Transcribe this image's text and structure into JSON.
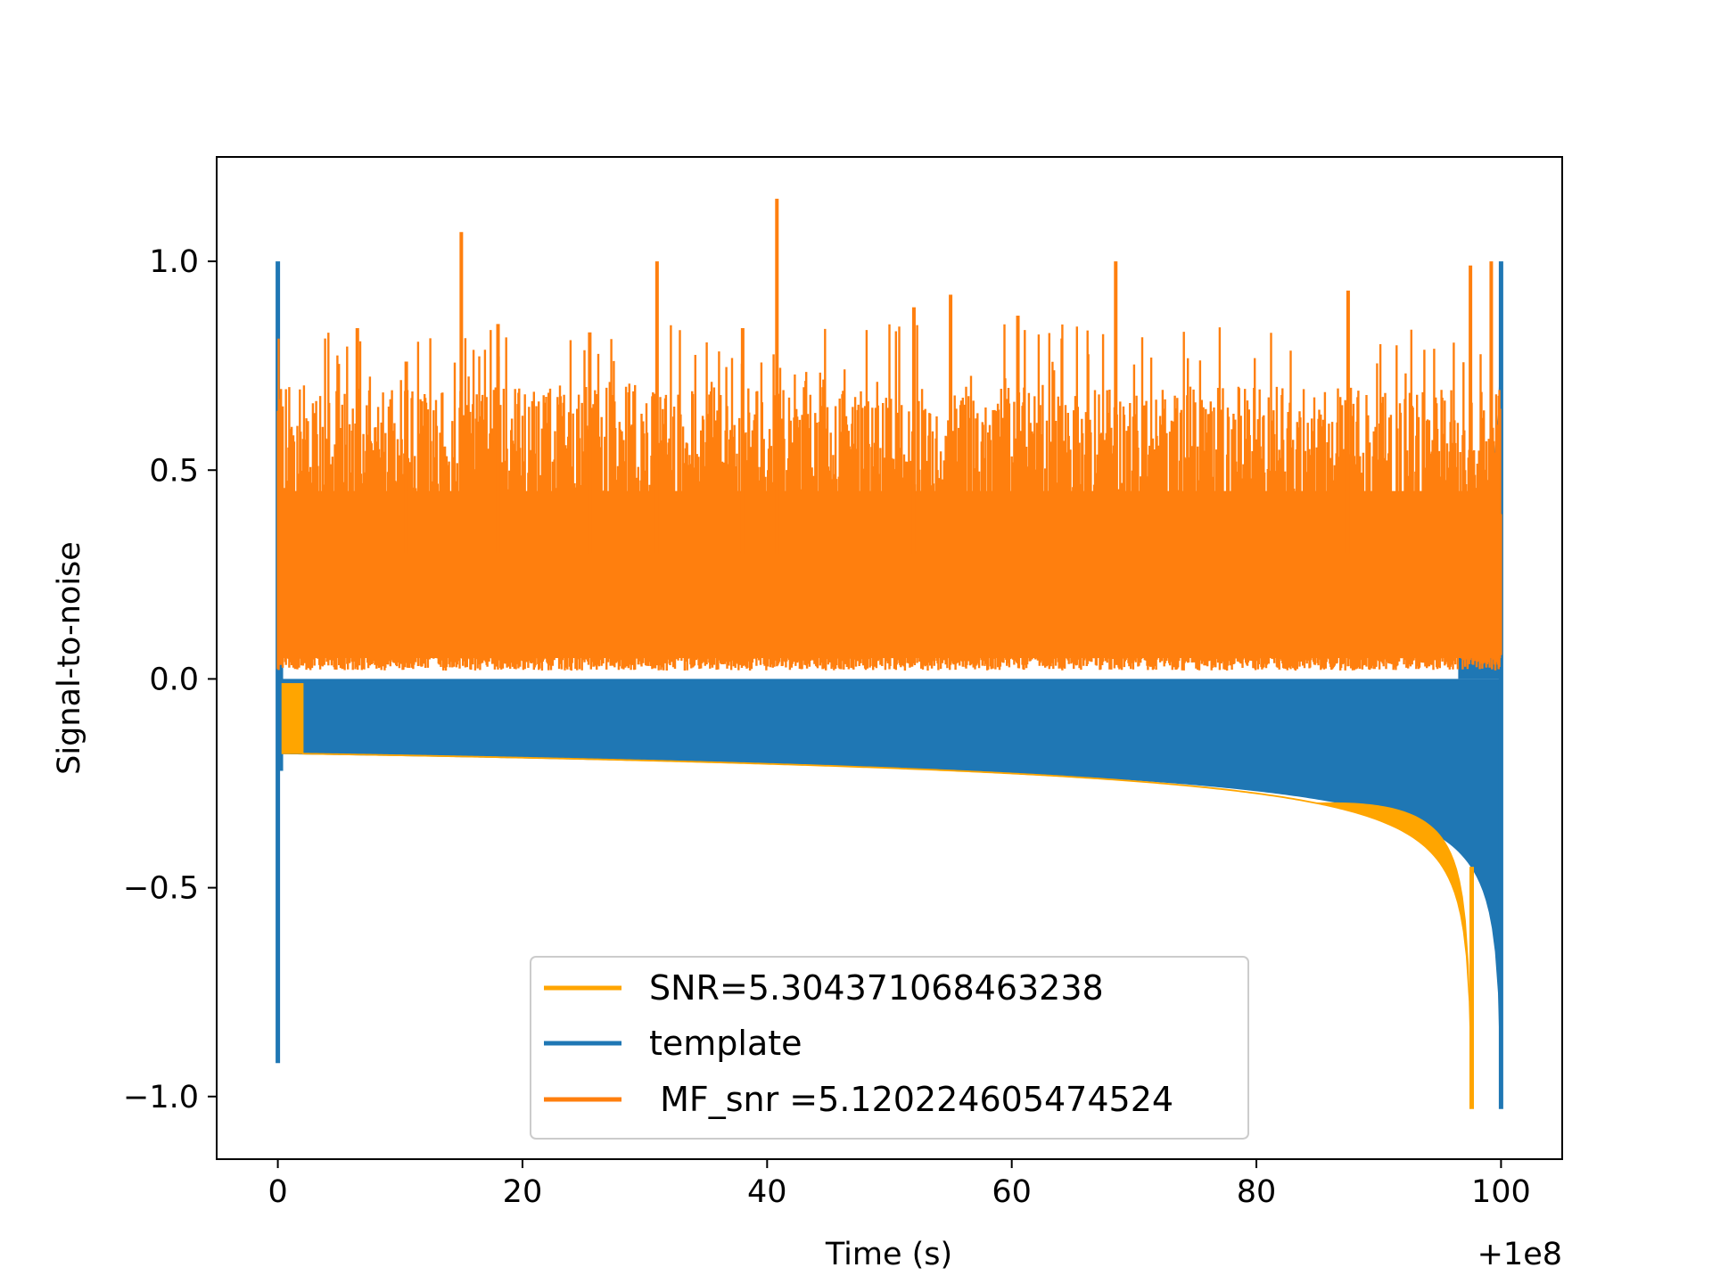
{
  "chart_data": {
    "type": "line",
    "title": "",
    "xlabel": "Time (s)",
    "ylabel": "Signal-to-noise",
    "x_offset_label": "+1e8",
    "xlim": [
      -5,
      105
    ],
    "ylim": [
      -1.15,
      1.25
    ],
    "x_ticks": [
      0,
      20,
      40,
      60,
      80,
      100
    ],
    "x_tick_labels": [
      "0",
      "20",
      "40",
      "60",
      "80",
      "100"
    ],
    "y_ticks": [
      -1.0,
      -0.5,
      0.0,
      0.5,
      1.0
    ],
    "y_tick_labels": [
      "−1.0",
      "−0.5",
      "0.0",
      "0.5",
      "1.0"
    ],
    "grid": false,
    "legend_position": "lower-center",
    "series": [
      {
        "name": "SNR=5.304371068463238",
        "color": "#ffa500",
        "kind": "chirp-band",
        "start_x": 0.0,
        "end_x": 97.6,
        "baseline_start": -0.18,
        "min_value": -1.03
      },
      {
        "name": "template",
        "color": "#1f77b4",
        "kind": "chirp-band",
        "start_x": 0.0,
        "end_x": 100.0,
        "baseline_start": -0.18,
        "min_value": -1.03,
        "max_value": 1.0,
        "start_spike_max": 1.0,
        "start_spike_min": -0.92
      },
      {
        "name": " MF_snr =5.120224605474524",
        "color": "#ff7f0e",
        "kind": "noise",
        "start_x": 0.0,
        "end_x": 100.0,
        "typical_low": 0.02,
        "typical_high": 0.58,
        "peaks": [
          [
            15.0,
            1.07
          ],
          [
            40.8,
            1.15
          ],
          [
            31.0,
            1.0
          ],
          [
            68.5,
            1.0
          ],
          [
            99.2,
            1.0
          ],
          [
            97.5,
            0.99
          ],
          [
            87.5,
            0.93
          ],
          [
            55.0,
            0.92
          ],
          [
            52.0,
            0.89
          ],
          [
            60.5,
            0.87
          ],
          [
            18.0,
            0.85
          ],
          [
            38.0,
            0.84
          ],
          [
            25.5,
            0.83
          ],
          [
            6.5,
            0.84
          ],
          [
            10.5,
            0.76
          ]
        ]
      }
    ]
  }
}
